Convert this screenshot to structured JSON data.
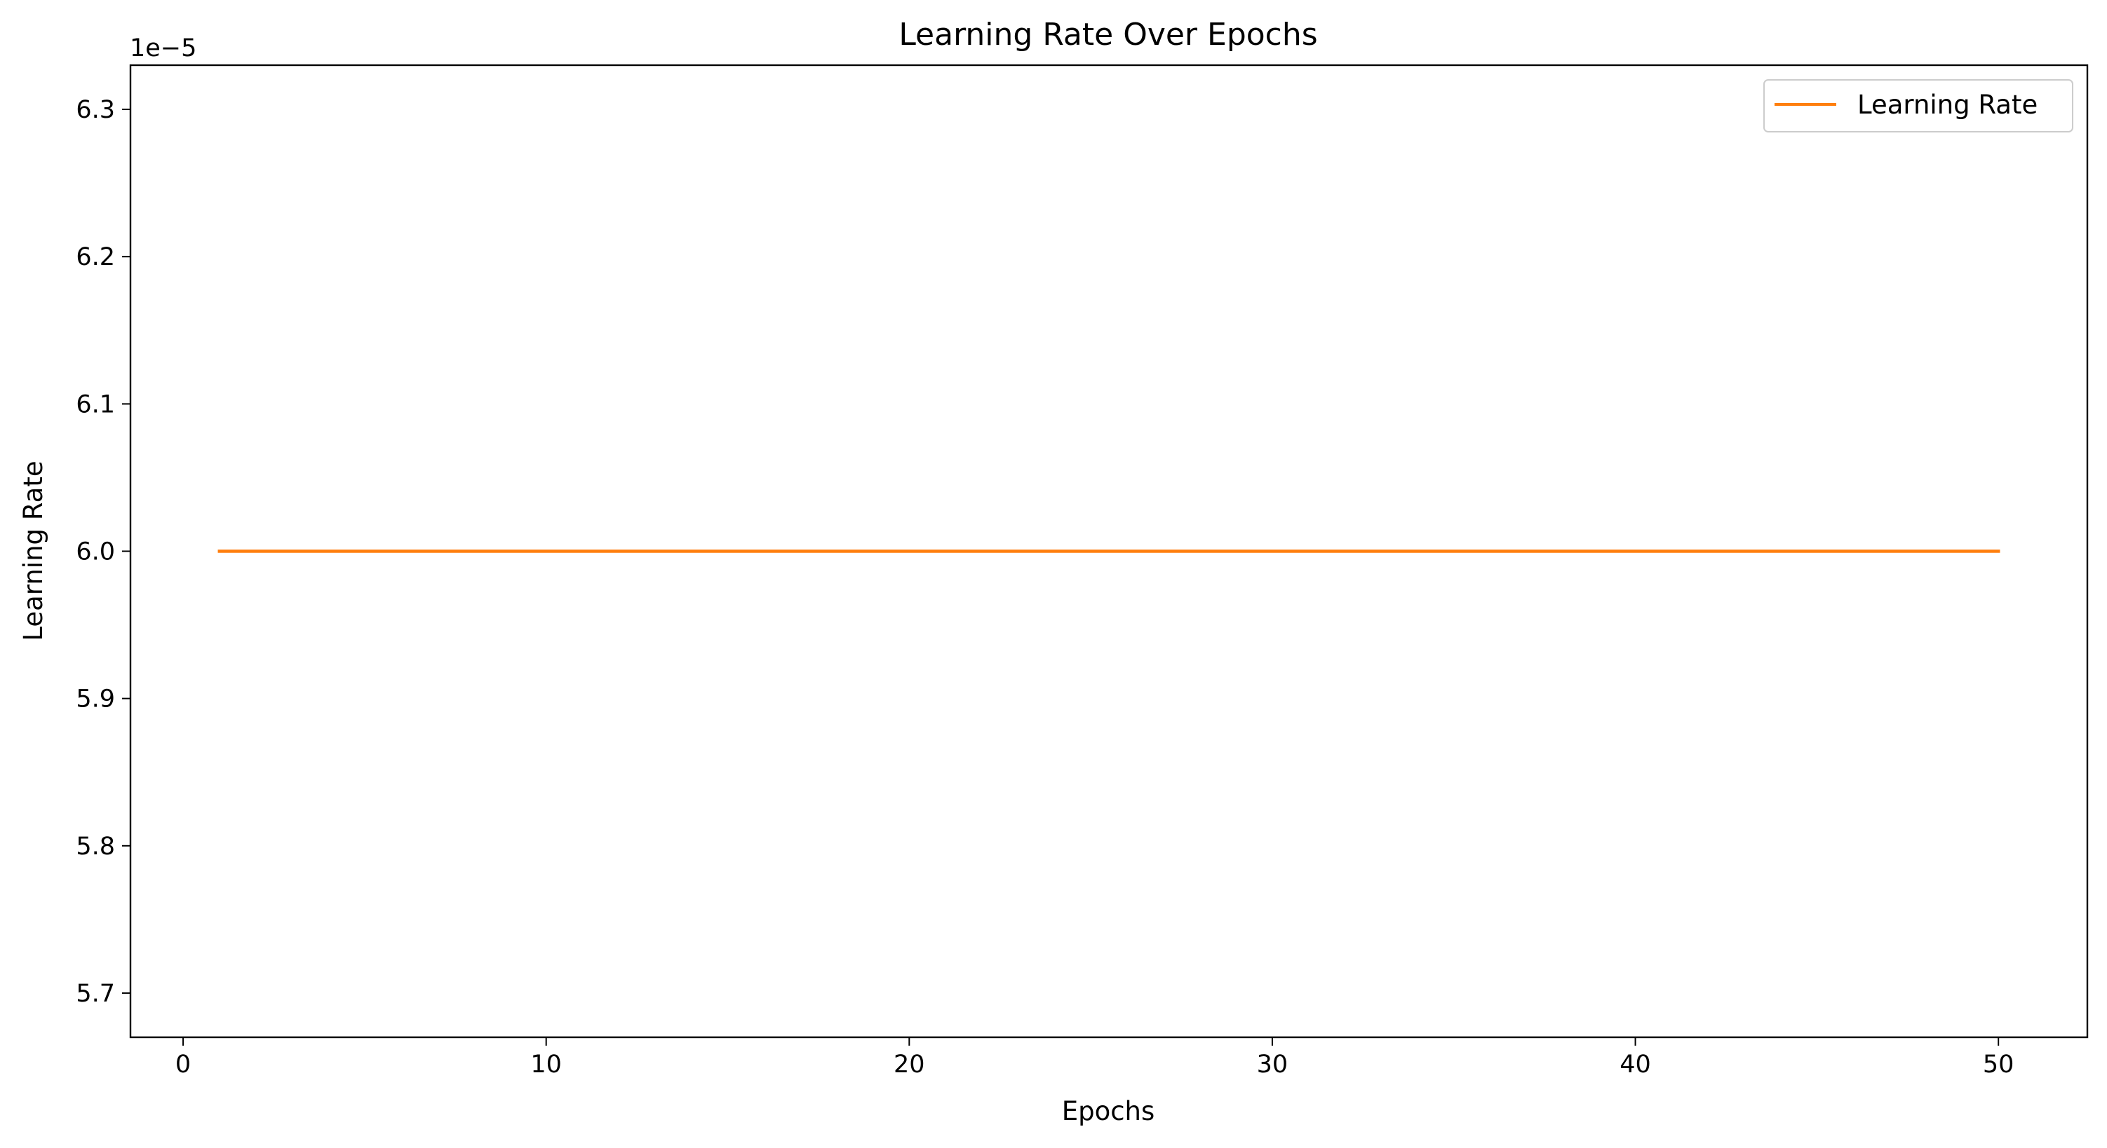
{
  "chart_data": {
    "type": "line",
    "title": "Learning Rate Over Epochs",
    "xlabel": "Epochs",
    "ylabel": "Learning Rate",
    "y_offset_text": "1e−5",
    "xlim": [
      -1.45,
      52.45
    ],
    "ylim": [
      5.67,
      6.33
    ],
    "y_scale_factor": 1e-05,
    "grid": false,
    "legend_position": "top-right",
    "x_ticks": [
      0,
      10,
      20,
      30,
      40,
      50
    ],
    "x_tick_labels": [
      "0",
      "10",
      "20",
      "30",
      "40",
      "50"
    ],
    "y_ticks": [
      5.7,
      5.8,
      5.9,
      6.0,
      6.1,
      6.2,
      6.3
    ],
    "y_tick_labels": [
      "5.7",
      "5.8",
      "5.9",
      "6.0",
      "6.1",
      "6.2",
      "6.3"
    ],
    "series": [
      {
        "name": "Learning Rate",
        "color": "#ff7f0e",
        "x": [
          1,
          2,
          3,
          4,
          5,
          6,
          7,
          8,
          9,
          10,
          11,
          12,
          13,
          14,
          15,
          16,
          17,
          18,
          19,
          20,
          21,
          22,
          23,
          24,
          25,
          26,
          27,
          28,
          29,
          30,
          31,
          32,
          33,
          34,
          35,
          36,
          37,
          38,
          39,
          40,
          41,
          42,
          43,
          44,
          45,
          46,
          47,
          48,
          49,
          50
        ],
        "y": [
          6.0,
          6.0,
          6.0,
          6.0,
          6.0,
          6.0,
          6.0,
          6.0,
          6.0,
          6.0,
          6.0,
          6.0,
          6.0,
          6.0,
          6.0,
          6.0,
          6.0,
          6.0,
          6.0,
          6.0,
          6.0,
          6.0,
          6.0,
          6.0,
          6.0,
          6.0,
          6.0,
          6.0,
          6.0,
          6.0,
          6.0,
          6.0,
          6.0,
          6.0,
          6.0,
          6.0,
          6.0,
          6.0,
          6.0,
          6.0,
          6.0,
          6.0,
          6.0,
          6.0,
          6.0,
          6.0,
          6.0,
          6.0,
          6.0,
          6.0
        ]
      }
    ]
  }
}
